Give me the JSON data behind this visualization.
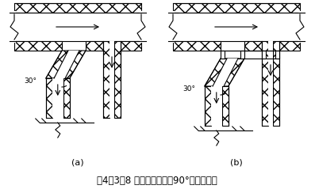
{
  "title": "图4．3．8 主风管与支风管90°连接示意图",
  "title_fontsize": 8.5,
  "bg_color": "#ffffff",
  "line_color": "#000000",
  "label_a": "(a)",
  "label_b": "(b)",
  "angle_label": "30°",
  "figsize": [
    3.97,
    2.39
  ],
  "dpi": 100
}
